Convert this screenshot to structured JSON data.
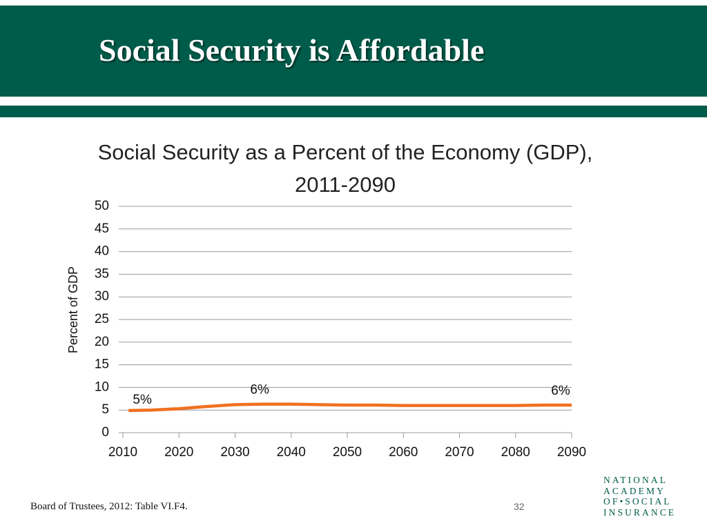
{
  "header": {
    "title": "Social Security is Affordable"
  },
  "chart_data": {
    "type": "line",
    "title": "Social Security as a Percent of the Economy (GDP), 2011-2090",
    "y_label": "Percent of GDP",
    "x": [
      2011,
      2015,
      2020,
      2025,
      2030,
      2035,
      2040,
      2045,
      2050,
      2055,
      2060,
      2065,
      2070,
      2075,
      2080,
      2085,
      2090
    ],
    "values": [
      4.9,
      5.0,
      5.3,
      5.8,
      6.2,
      6.3,
      6.3,
      6.2,
      6.1,
      6.1,
      6.0,
      6.0,
      6.0,
      6.0,
      6.0,
      6.1,
      6.1
    ],
    "value_labels": [
      "5%",
      null,
      null,
      null,
      null,
      "6%",
      null,
      null,
      null,
      null,
      null,
      null,
      null,
      null,
      null,
      null,
      "6%"
    ],
    "color": "#f07020",
    "xlim": [
      2010,
      2090
    ],
    "xticks": [
      2010,
      2020,
      2030,
      2040,
      2050,
      2060,
      2070,
      2080,
      2090
    ],
    "ylim": [
      0,
      50
    ],
    "yticks": [
      0,
      5,
      10,
      15,
      20,
      25,
      30,
      35,
      40,
      45,
      50
    ],
    "grid": true
  },
  "footer": {
    "source": "Board of Trustees, 2012: Table VI.F4.",
    "page_number": "32"
  },
  "logo": {
    "lines": [
      "NATIONAL",
      "ACADEMY",
      "OF•SOCIAL",
      "INSURANCE"
    ]
  }
}
